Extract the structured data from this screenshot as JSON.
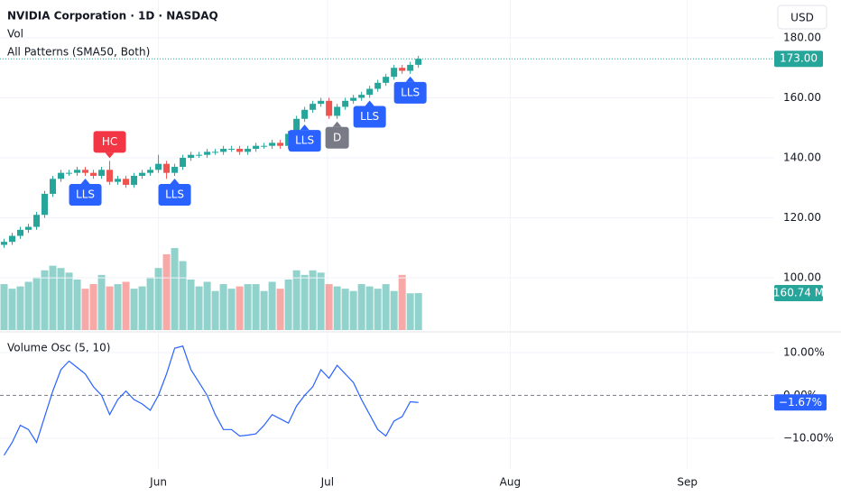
{
  "chart_data": [
    {
      "type": "candlestick",
      "title": "NVIDIA Corporation · 1D · NASDAQ",
      "subtitle": "All Patterns (SMA50, Both)",
      "currency": "USD",
      "open": [
        111,
        112,
        114,
        116,
        117,
        121,
        128,
        133,
        135,
        135,
        136,
        135,
        134,
        136,
        132,
        133,
        131,
        134,
        135,
        136,
        138,
        135,
        137,
        140,
        141,
        141,
        142,
        142,
        143,
        143,
        142,
        143,
        144,
        144,
        145,
        144,
        148,
        153,
        156,
        158,
        159,
        154,
        157,
        159,
        160,
        161,
        163,
        165,
        167,
        170,
        169,
        171
      ],
      "high": [
        113,
        115,
        117,
        118,
        122,
        129,
        134,
        136,
        136,
        137,
        137,
        136,
        137,
        139,
        134,
        134,
        135,
        136,
        137,
        141,
        139,
        138,
        141,
        142,
        142,
        143,
        143,
        144,
        144,
        144,
        144,
        145,
        145,
        146,
        146,
        149,
        154,
        157,
        159,
        160,
        160,
        158,
        160,
        161,
        162,
        164,
        166,
        168,
        171,
        171,
        172,
        174
      ],
      "low": [
        110,
        111,
        113,
        115,
        116,
        120,
        127,
        132,
        134,
        134,
        134,
        133,
        133,
        131,
        131,
        130,
        130,
        133,
        134,
        135,
        133,
        134,
        136,
        139,
        140,
        140,
        141,
        141,
        142,
        141,
        141,
        142,
        143,
        143,
        143,
        143,
        147,
        152,
        155,
        157,
        153,
        153,
        156,
        158,
        159,
        160,
        162,
        164,
        166,
        168,
        168,
        170
      ],
      "close": [
        112,
        114,
        116,
        117,
        121,
        128,
        133,
        135,
        135,
        136,
        135,
        134,
        136,
        132,
        133,
        131,
        134,
        135,
        136,
        138,
        135,
        137,
        140,
        141,
        141,
        142,
        142,
        143,
        143,
        142,
        143,
        144,
        144,
        145,
        144,
        148,
        153,
        156,
        158,
        159,
        154,
        157,
        159,
        160,
        161,
        163,
        165,
        167,
        170,
        169,
        171,
        173
      ],
      "up_color": "#26a69a",
      "down_color": "#ef5350",
      "ylim": [
        82.6,
        192.6
      ],
      "yticks": [
        {
          "value": 100,
          "label": "100.00"
        },
        {
          "value": 120,
          "label": "120.00"
        },
        {
          "value": 140,
          "label": "140.00"
        },
        {
          "value": 160,
          "label": "160.00"
        },
        {
          "value": 180,
          "label": "180.00"
        }
      ],
      "xlim": [
        -0.5,
        94.8
      ],
      "last_label": "173.00",
      "patterns": [
        {
          "text": "LLS",
          "candle": 10,
          "position": "below",
          "color": "#2962ff"
        },
        {
          "text": "HC",
          "candle": 13,
          "position": "above",
          "color": "#f23645"
        },
        {
          "text": "LLS",
          "candle": 21,
          "position": "below",
          "color": "#2962ff"
        },
        {
          "text": "LLS",
          "candle": 37,
          "position": "below",
          "color": "#2962ff"
        },
        {
          "text": "D",
          "candle": 41,
          "position": "below",
          "color": "#787b86"
        },
        {
          "text": "LLS",
          "candle": 45,
          "position": "below",
          "color": "#2962ff"
        },
        {
          "text": "LLS",
          "candle": 50,
          "position": "below",
          "color": "#2962ff"
        }
      ]
    },
    {
      "type": "bar",
      "title": "Vol",
      "values": [
        200,
        180,
        190,
        210,
        230,
        260,
        280,
        270,
        250,
        220,
        180,
        200,
        240,
        190,
        200,
        210,
        180,
        190,
        230,
        270,
        330,
        357,
        300,
        220,
        190,
        210,
        170,
        200,
        180,
        190,
        200,
        200,
        170,
        210,
        180,
        220,
        260,
        240,
        260,
        250,
        200,
        190,
        180,
        170,
        200,
        190,
        180,
        200,
        170,
        240,
        160,
        160.74
      ],
      "up_color": "rgba(38,166,154,0.5)",
      "down_color": "rgba(239,83,80,0.5)",
      "ylim": [
        0,
        420
      ],
      "last_label": "160.74 M"
    },
    {
      "type": "line",
      "title": "Volume Osc (5, 10)",
      "values": [
        -14,
        -11,
        -7,
        -8,
        -11,
        -5,
        1,
        6,
        8,
        6.5,
        5,
        2,
        0,
        -4.5,
        -1,
        1,
        -1,
        -2,
        -3.5,
        0,
        5,
        11,
        11.5,
        6,
        3,
        0,
        -4.5,
        -8,
        -8,
        -9.5,
        -9.3,
        -9,
        -7,
        -4.5,
        -5.5,
        -6.5,
        -2.5,
        0,
        2,
        6,
        4,
        7,
        5,
        3,
        -1,
        -4.5,
        -8,
        -9.5,
        -6,
        -5,
        -1.5,
        -1.67
      ],
      "color": "#2962ff",
      "ylim": [
        -17.2,
        14.4
      ],
      "yticks": [
        {
          "value": -10,
          "label": "−10.00%"
        },
        {
          "value": 0,
          "label": "0.00%"
        },
        {
          "value": 10,
          "label": "10.00%"
        }
      ],
      "last_label": "−1.67%",
      "xlim": [
        -0.5,
        94.8
      ],
      "xticks": [
        {
          "value": 19,
          "label": "Jun"
        },
        {
          "value": 39.8,
          "label": "Jul"
        },
        {
          "value": 62.3,
          "label": "Aug"
        },
        {
          "value": 84.1,
          "label": "Sep"
        }
      ]
    }
  ]
}
